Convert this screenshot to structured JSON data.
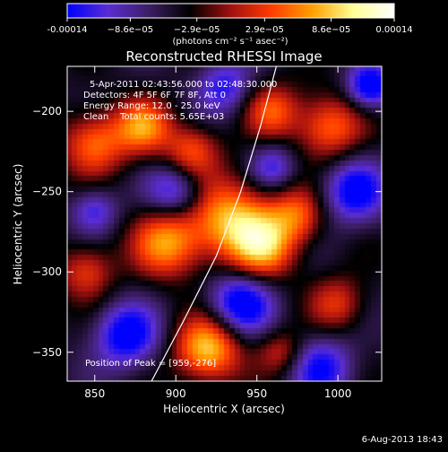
{
  "chart_data": {
    "type": "heatmap",
    "title": "Reconstructed RHESSI Image",
    "xlabel": "Heliocentric X (arcsec)",
    "ylabel": "Heliocentric Y (arcsec)",
    "xlim": [
      833,
      1027
    ],
    "ylim": [
      -368,
      -172
    ],
    "xticks": [
      850,
      900,
      950,
      1000
    ],
    "yticks": [
      -200,
      -250,
      -300,
      -350
    ],
    "colorbar": {
      "min": -0.00014,
      "max": 0.00014,
      "ticks": [
        {
          "value": -0.00014,
          "label": "-0.00014"
        },
        {
          "value": -8.6e-05,
          "label": "−8.6e−05"
        },
        {
          "value": -2.9e-05,
          "label": "−2.9e−05"
        },
        {
          "value": 2.9e-05,
          "label": "2.9e−05"
        },
        {
          "value": 8.6e-05,
          "label": "8.6e−05"
        },
        {
          "value": 0.00014,
          "label": "0.00014"
        }
      ],
      "unit_label": "(photons cm⁻² s⁻¹ asec⁻²)",
      "colormap": [
        "#0000ff",
        "#5a2dd2",
        "#3c1e64",
        "#000000",
        "#a01010",
        "#ff3c00",
        "#ffa000",
        "#ffff96",
        "#ffffff"
      ]
    },
    "info_lines": [
      "5-Apr-2011 02:43:56.000 to 02:48:30.000",
      "Detectors: 4F 5F 6F 7F 8F, Att 0",
      "Energy Range: 12.0 - 25.0 keV",
      "Clean    Total counts: 5.65E+03"
    ],
    "peak_label": "Position of Peak = [959,-276]",
    "limb_curve": [
      [
        885,
        -368
      ],
      [
        905,
        -330
      ],
      [
        925,
        -290
      ],
      [
        940,
        -250
      ],
      [
        952,
        -210
      ],
      [
        962,
        -172
      ]
    ],
    "blobs": [
      {
        "x": 920,
        "y": -348,
        "v": 1.0,
        "s": 14
      },
      {
        "x": 895,
        "y": -282,
        "v": 0.8,
        "s": 15
      },
      {
        "x": 935,
        "y": -268,
        "v": 0.9,
        "s": 18
      },
      {
        "x": 955,
        "y": -285,
        "v": 0.75,
        "s": 14
      },
      {
        "x": 975,
        "y": -265,
        "v": 0.6,
        "s": 12
      },
      {
        "x": 850,
        "y": -220,
        "v": 0.7,
        "s": 14
      },
      {
        "x": 880,
        "y": -210,
        "v": 0.75,
        "s": 12
      },
      {
        "x": 910,
        "y": -225,
        "v": 0.6,
        "s": 12
      },
      {
        "x": 995,
        "y": -210,
        "v": 0.7,
        "s": 14
      },
      {
        "x": 960,
        "y": -200,
        "v": 0.6,
        "s": 12
      },
      {
        "x": 845,
        "y": -300,
        "v": 0.55,
        "s": 12
      },
      {
        "x": 1000,
        "y": -320,
        "v": 0.5,
        "s": 12
      },
      {
        "x": 965,
        "y": -350,
        "v": 0.45,
        "s": 10
      },
      {
        "x": 870,
        "y": -340,
        "v": -0.75,
        "s": 14
      },
      {
        "x": 940,
        "y": -320,
        "v": -0.8,
        "s": 14
      },
      {
        "x": 900,
        "y": -250,
        "v": -0.6,
        "s": 12
      },
      {
        "x": 1010,
        "y": -250,
        "v": -0.7,
        "s": 14
      },
      {
        "x": 990,
        "y": -360,
        "v": -0.6,
        "s": 14
      },
      {
        "x": 850,
        "y": -262,
        "v": -0.5,
        "s": 10
      },
      {
        "x": 930,
        "y": -185,
        "v": -0.55,
        "s": 12
      },
      {
        "x": 1020,
        "y": -185,
        "v": -0.8,
        "s": 10
      },
      {
        "x": 960,
        "y": -235,
        "v": -0.5,
        "s": 10
      }
    ]
  },
  "footer": {
    "date_stamp": "6-Aug-2013 18:43"
  }
}
